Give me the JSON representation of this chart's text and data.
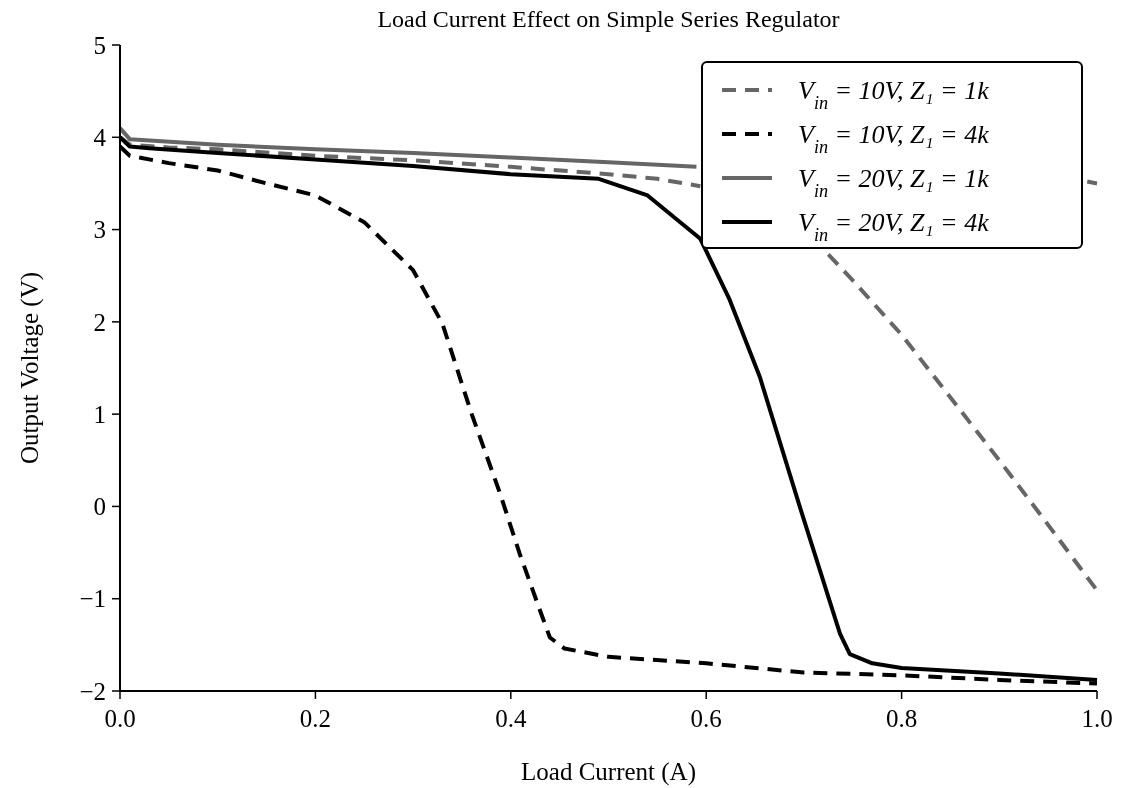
{
  "chart_data": {
    "type": "line",
    "title": "Load Current Effect on Simple Series Regulator",
    "xlabel": "Load Current (A)",
    "ylabel": "Output Voltage (V)",
    "xlim": [
      0,
      1
    ],
    "xticks": [
      {
        "value": 0,
        "label": "0.0"
      },
      {
        "value": 0.2,
        "label": "0.2"
      },
      {
        "value": 0.4,
        "label": "0.4"
      },
      {
        "value": 0.6,
        "label": "0.6"
      },
      {
        "value": 0.8,
        "label": "0.8"
      },
      {
        "value": 1,
        "label": "1.0"
      }
    ],
    "ylim": [
      -2,
      5
    ],
    "yticks": [
      {
        "value": -2,
        "label": "−2"
      },
      {
        "value": -1,
        "label": "−1"
      },
      0,
      1,
      2,
      3,
      4,
      5
    ],
    "grid": false,
    "legend": "top right",
    "series": [
      {
        "name": "V$_{in}$ = 10V, Z₁ = 1k",
        "color": "#666666",
        "line_style": "dashed",
        "x": [
          0,
          0.01,
          0.05,
          0.1,
          0.2,
          0.3,
          0.4,
          0.5,
          0.55,
          0.594,
          0.6,
          0.72,
          0.725,
          0.75,
          0.8,
          0.85,
          0.9,
          0.95,
          1.0
        ],
        "values": [
          4.0,
          3.92,
          3.89,
          3.87,
          3.8,
          3.75,
          3.68,
          3.6,
          3.55,
          3.47,
          null,
          null,
          2.73,
          2.45,
          1.86,
          1.18,
          0.5,
          -0.2,
          -0.91
        ]
      },
      {
        "name": "V$_{in}$ = 10V, Z₁ = 4k",
        "color": "#000000",
        "line_style": "dashed",
        "x": [
          0,
          0.01,
          0.05,
          0.1,
          0.15,
          0.2,
          0.25,
          0.3,
          0.33,
          0.36,
          0.389,
          0.409,
          0.43,
          0.44,
          0.455,
          0.5,
          0.6,
          0.7,
          0.8,
          0.9,
          1.0
        ],
        "values": [
          3.9,
          3.8,
          3.72,
          3.64,
          3.5,
          3.37,
          3.08,
          2.56,
          1.98,
          1.0,
          0.14,
          -0.51,
          -1.13,
          -1.42,
          -1.54,
          -1.63,
          -1.7,
          -1.8,
          -1.83,
          -1.88,
          -1.92
        ]
      },
      {
        "name": "V$_{in}$ = 20V, Z₁ = 1k",
        "color": "#666666",
        "line_style": "solid",
        "x": [
          0,
          0.01,
          0.1,
          0.2,
          0.3,
          0.4,
          0.5,
          0.59,
          0.6,
          0.98,
          0.99,
          1.0
        ],
        "values": [
          4.1,
          3.98,
          3.92,
          3.87,
          3.83,
          3.78,
          3.73,
          3.68,
          null,
          null,
          3.52,
          3.5
        ]
      },
      {
        "name": "V$_{in}$ = 20V, Z₁ = 4k",
        "color": "#000000",
        "line_style": "solid",
        "x": [
          0,
          0.01,
          0.03,
          0.1,
          0.2,
          0.3,
          0.4,
          0.49,
          0.54,
          0.594,
          0.624,
          0.655,
          0.696,
          0.737,
          0.747,
          0.77,
          0.8,
          0.9,
          1.0
        ],
        "values": [
          4.0,
          3.9,
          3.88,
          3.83,
          3.76,
          3.69,
          3.6,
          3.55,
          3.37,
          2.9,
          2.24,
          1.4,
          -0.01,
          -1.38,
          -1.6,
          -1.7,
          -1.75,
          -1.81,
          -1.88
        ]
      }
    ]
  }
}
